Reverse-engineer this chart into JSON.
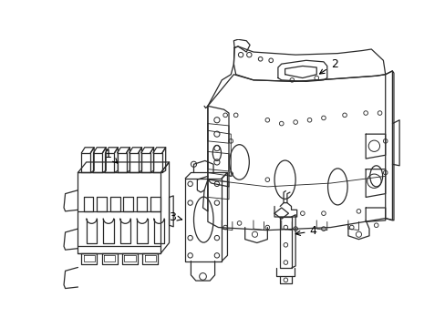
{
  "background_color": "#ffffff",
  "line_color": "#2a2a2a",
  "line_width": 0.9,
  "label_color": "#000000",
  "label_fontsize": 9,
  "figsize": [
    4.89,
    3.6
  ],
  "dpi": 100
}
